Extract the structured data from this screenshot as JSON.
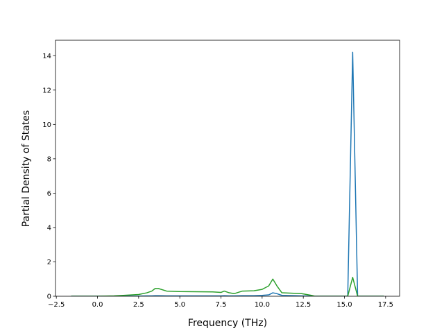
{
  "chart_data": {
    "type": "line",
    "xlabel": "Frequency (THz)",
    "ylabel": "Partial Density of States",
    "x": [
      -1.6,
      0,
      1,
      2.5,
      3,
      3.3,
      3.5,
      3.7,
      4.2,
      5,
      7,
      7.5,
      7.7,
      8,
      8.3,
      8.8,
      9.5,
      10,
      10.4,
      10.65,
      10.9,
      11.2,
      12.4,
      13,
      13.2,
      15.2,
      15.5,
      15.8,
      17.4
    ],
    "series": [
      {
        "color": "#1f77b4",
        "values": [
          0,
          0,
          0,
          0.01,
          0.02,
          0.02,
          0.03,
          0.03,
          0.02,
          0.02,
          0.02,
          0.02,
          0.03,
          0.02,
          0.02,
          0.03,
          0.03,
          0.05,
          0.08,
          0.2,
          0.15,
          0.05,
          0.02,
          0.01,
          0,
          0,
          14.2,
          0,
          0
        ]
      },
      {
        "color": "#2ca02c",
        "values": [
          0,
          0,
          0.02,
          0.1,
          0.2,
          0.3,
          0.45,
          0.45,
          0.3,
          0.27,
          0.25,
          0.22,
          0.3,
          0.2,
          0.15,
          0.3,
          0.32,
          0.4,
          0.6,
          1.0,
          0.6,
          0.2,
          0.15,
          0.05,
          0,
          0,
          1.1,
          0,
          0
        ]
      }
    ],
    "xlim": [
      -2.55,
      18.35
    ],
    "ylim": [
      0,
      14.9
    ],
    "xticks": [
      {
        "value": -2.5,
        "label": "−2.5"
      },
      {
        "value": 0,
        "label": "0.0"
      },
      {
        "value": 2.5,
        "label": "2.5"
      },
      {
        "value": 5,
        "label": "5.0"
      },
      {
        "value": 7.5,
        "label": "7.5"
      },
      {
        "value": 10,
        "label": "10.0"
      },
      {
        "value": 12.5,
        "label": "12.5"
      },
      {
        "value": 15,
        "label": "15.0"
      },
      {
        "value": 17.5,
        "label": "17.5"
      }
    ],
    "yticks": [
      0,
      2,
      4,
      6,
      8,
      10,
      12,
      14
    ]
  }
}
